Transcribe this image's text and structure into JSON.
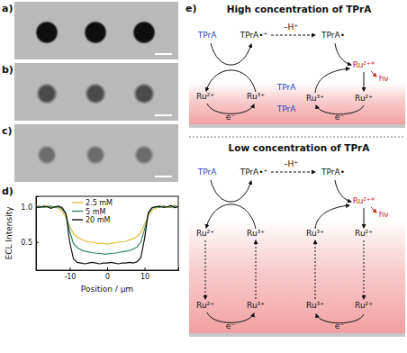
{
  "panel_labels": [
    "a)",
    "b)",
    "c)",
    "d)",
    "e)"
  ],
  "chart_data": {
    "type": "line",
    "x_label": "Position / µm",
    "y_label": "ECL Intensity",
    "x": [
      -19,
      -18,
      -17,
      -16,
      -15,
      -14,
      -13,
      -12,
      -11,
      -10,
      -9,
      -8,
      -7,
      -6,
      -5,
      -4,
      -3,
      -2,
      -1,
      0,
      1,
      2,
      3,
      4,
      5,
      6,
      7,
      8,
      9,
      10,
      11,
      12,
      13,
      14,
      15,
      16,
      17,
      18,
      19
    ],
    "series": [
      {
        "name": "2.5 mM",
        "color": "#e3b93c",
        "values": [
          1.01,
          0.99,
          1.0,
          1.02,
          0.98,
          1.0,
          0.98,
          0.94,
          0.85,
          0.72,
          0.62,
          0.57,
          0.54,
          0.52,
          0.5,
          0.5,
          0.49,
          0.48,
          0.48,
          0.47,
          0.48,
          0.49,
          0.5,
          0.5,
          0.51,
          0.53,
          0.55,
          0.58,
          0.64,
          0.75,
          0.87,
          0.95,
          0.98,
          1.0,
          1.01,
          0.99,
          1.0,
          1.02,
          1.0
        ]
      },
      {
        "name": "5 mM",
        "color": "#2f8a62",
        "values": [
          1.0,
          1.01,
          0.99,
          1.0,
          1.01,
          0.99,
          1.0,
          0.97,
          0.9,
          0.65,
          0.48,
          0.42,
          0.39,
          0.37,
          0.36,
          0.35,
          0.34,
          0.34,
          0.33,
          0.33,
          0.34,
          0.34,
          0.35,
          0.36,
          0.37,
          0.38,
          0.4,
          0.43,
          0.5,
          0.68,
          0.9,
          0.98,
          1.0,
          0.99,
          1.01,
          1.0,
          0.99,
          1.01,
          1.0
        ]
      },
      {
        "name": "20 mM",
        "color": "#111111",
        "values": [
          1.0,
          0.99,
          1.01,
          1.0,
          0.98,
          1.0,
          1.01,
          0.99,
          0.9,
          0.5,
          0.26,
          0.21,
          0.2,
          0.19,
          0.2,
          0.21,
          0.2,
          0.19,
          0.2,
          0.2,
          0.21,
          0.2,
          0.19,
          0.2,
          0.2,
          0.21,
          0.2,
          0.22,
          0.28,
          0.55,
          0.92,
          0.99,
          1.0,
          1.01,
          0.99,
          1.0,
          1.02,
          0.99,
          1.0
        ]
      }
    ],
    "xlim": [
      -19,
      19
    ],
    "ylim": [
      0.1,
      1.15
    ],
    "xticks": [
      -10,
      0,
      10
    ],
    "yticks": [
      0.5,
      {
        "value": 1.0,
        "label": "1.0"
      }
    ],
    "legend": "top-left"
  },
  "diagram": {
    "sections": [
      {
        "title": "High concentration of TPrA",
        "nodes": [
          {
            "text": "TPrA",
            "color": "#1f3fbf"
          },
          {
            "text": "TPrA•⁺",
            "color": "#111111"
          },
          {
            "text": "–H⁺",
            "color": "#111111"
          },
          {
            "text": "TPrA•",
            "color": "#111111"
          },
          {
            "text": "Ru²⁺*",
            "color": "#d21f1f"
          },
          {
            "text": "hν",
            "color": "#d21f1f"
          },
          {
            "text": "Ru²⁺",
            "color": "#111111"
          },
          {
            "text": "Ru³⁺",
            "color": "#111111"
          },
          {
            "text": "TPrA",
            "color": "#1f3fbf"
          },
          {
            "text": "TPrA",
            "color": "#1f3fbf"
          },
          {
            "text": "Ru³⁺",
            "color": "#111111"
          },
          {
            "text": "Ru²⁺",
            "color": "#111111"
          },
          {
            "text": "e⁻",
            "color": "#111111"
          },
          {
            "text": "e⁻",
            "color": "#111111"
          }
        ]
      },
      {
        "title": "Low concentration of TPrA",
        "nodes": [
          {
            "text": "TPrA",
            "color": "#1f3fbf"
          },
          {
            "text": "TPrA•⁺",
            "color": "#111111"
          },
          {
            "text": "–H⁺",
            "color": "#111111"
          },
          {
            "text": "TPrA•",
            "color": "#111111"
          },
          {
            "text": "Ru²⁺*",
            "color": "#d21f1f"
          },
          {
            "text": "hν",
            "color": "#d21f1f"
          },
          {
            "text": "Ru²⁺",
            "color": "#111111"
          },
          {
            "text": "Ru³⁺",
            "color": "#111111"
          },
          {
            "text": "Ru³⁺",
            "color": "#111111"
          },
          {
            "text": "Ru²⁺",
            "color": "#111111"
          },
          {
            "text": "Ru²⁺",
            "color": "#111111"
          },
          {
            "text": "Ru³⁺",
            "color": "#111111"
          },
          {
            "text": "Ru³⁺",
            "color": "#111111"
          },
          {
            "text": "Ru²⁺",
            "color": "#111111"
          },
          {
            "text": "e⁻",
            "color": "#111111"
          },
          {
            "text": "e⁻",
            "color": "#111111"
          }
        ]
      }
    ]
  }
}
